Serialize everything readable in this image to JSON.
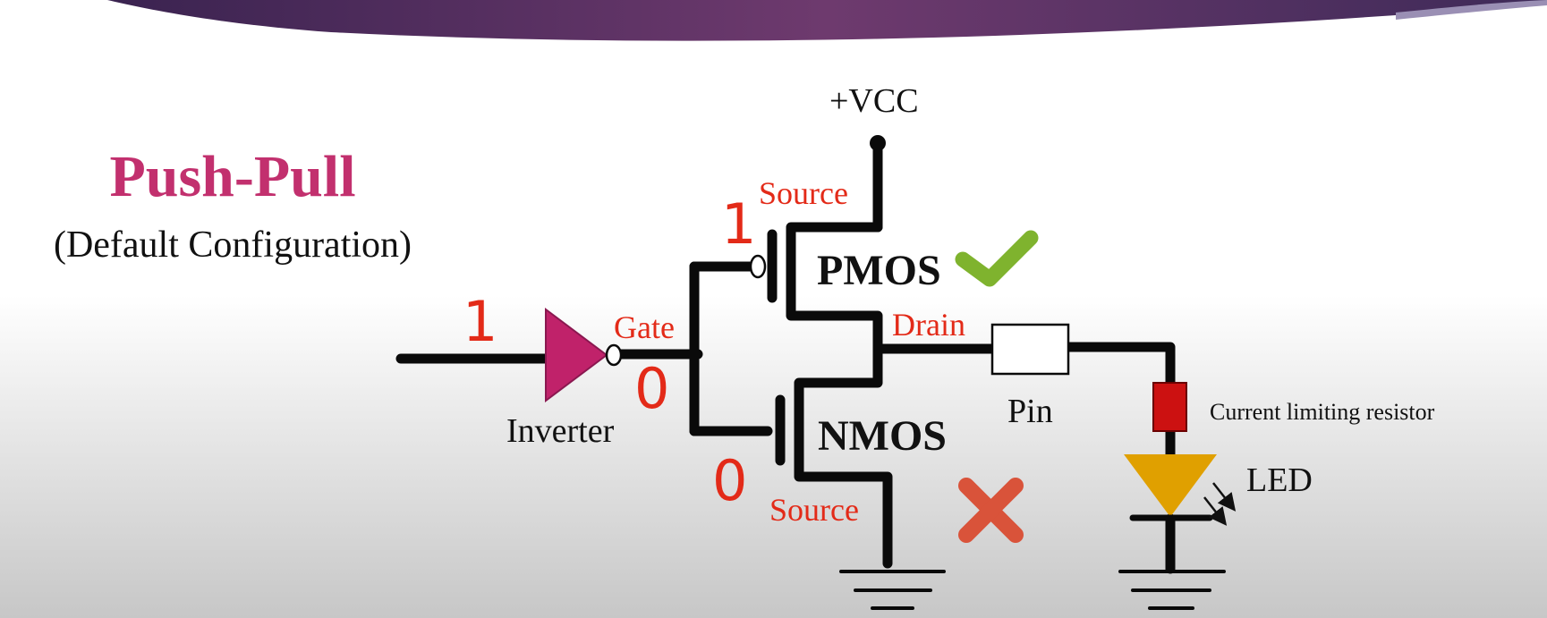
{
  "title": "Push-Pull",
  "subtitle": "(Default Configuration)",
  "labels": {
    "vcc": "+VCC",
    "source_top": "Source",
    "source_bottom": "Source",
    "gate": "Gate",
    "drain": "Drain",
    "pmos": "PMOS",
    "nmos": "NMOS",
    "inverter": "Inverter",
    "pin": "Pin",
    "resistor": "Current limiting resistor",
    "led": "LED"
  },
  "logic_values": {
    "input": "1",
    "pmos_gate": "1",
    "inverter_output": "0",
    "nmos_gate": "0"
  },
  "status_icons": {
    "pmos": "check-icon",
    "nmos": "cross-icon"
  },
  "colors": {
    "banner": "#6e3a6e",
    "title": "#c2306e",
    "labels_red": "#e32a18",
    "inverter": "#c0226a",
    "check": "#7fb32e",
    "cross": "#d9533a",
    "resistor": "#cc1111",
    "led": "#e0a000"
  }
}
